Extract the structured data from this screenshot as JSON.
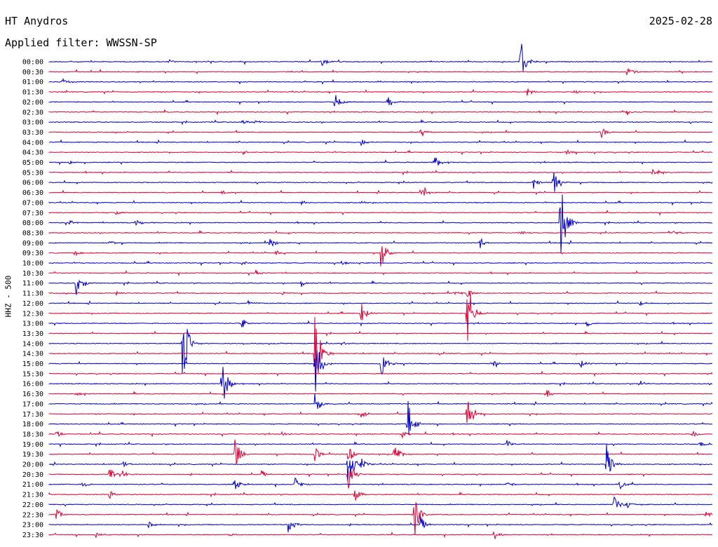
{
  "header": {
    "station": "HT Anydros",
    "date": "2025-02-28",
    "filter_label": "Applied filter: WWSSN-SP"
  },
  "chart_data": {
    "type": "line",
    "subtype": "helicorder",
    "channel_label": "HHZ - 500",
    "row_labels": [
      "00:00",
      "00:30",
      "01:00",
      "01:30",
      "02:00",
      "02:30",
      "03:00",
      "03:30",
      "04:00",
      "04:30",
      "05:00",
      "05:30",
      "06:00",
      "06:30",
      "07:00",
      "07:30",
      "08:00",
      "08:30",
      "09:00",
      "09:30",
      "10:00",
      "10:30",
      "11:00",
      "11:30",
      "12:00",
      "12:30",
      "13:00",
      "13:30",
      "14:00",
      "14:30",
      "15:00",
      "15:30",
      "16:00",
      "16:30",
      "17:00",
      "17:30",
      "18:00",
      "18:30",
      "19:00",
      "19:30",
      "20:00",
      "20:30",
      "21:00",
      "21:30",
      "22:00",
      "22:30",
      "23:00",
      "23:30"
    ],
    "trace_colors": [
      "#0000cc",
      "#dd0033"
    ],
    "grid": false,
    "events": [
      {
        "row": 0,
        "pos": 0.18,
        "amp": 4
      },
      {
        "row": 0,
        "pos": 0.41,
        "amp": 8
      },
      {
        "row": 0,
        "pos": 0.71,
        "amp": 45
      },
      {
        "row": 1,
        "pos": 0.87,
        "amp": 8
      },
      {
        "row": 1,
        "pos": 0.88,
        "amp": 4
      },
      {
        "row": 2,
        "pos": 0.02,
        "amp": 5
      },
      {
        "row": 3,
        "pos": 0.72,
        "amp": 8
      },
      {
        "row": 3,
        "pos": 0.79,
        "amp": 4
      },
      {
        "row": 4,
        "pos": 0.43,
        "amp": 16
      },
      {
        "row": 4,
        "pos": 0.51,
        "amp": 10
      },
      {
        "row": 5,
        "pos": 0.87,
        "amp": 6
      },
      {
        "row": 6,
        "pos": 0.29,
        "amp": 6
      },
      {
        "row": 6,
        "pos": 0.31,
        "amp": 4
      },
      {
        "row": 7,
        "pos": 0.56,
        "amp": 10
      },
      {
        "row": 7,
        "pos": 0.83,
        "amp": 14
      },
      {
        "row": 8,
        "pos": 0.47,
        "amp": 5
      },
      {
        "row": 9,
        "pos": 0.29,
        "amp": 4
      },
      {
        "row": 9,
        "pos": 0.78,
        "amp": 4
      },
      {
        "row": 10,
        "pos": 0.03,
        "amp": 4
      },
      {
        "row": 10,
        "pos": 0.58,
        "amp": 12
      },
      {
        "row": 11,
        "pos": 0.91,
        "amp": 8
      },
      {
        "row": 12,
        "pos": 0.73,
        "amp": 10
      },
      {
        "row": 12,
        "pos": 0.76,
        "amp": 22
      },
      {
        "row": 13,
        "pos": 0.56,
        "amp": 18
      },
      {
        "row": 13,
        "pos": 0.26,
        "amp": 4
      },
      {
        "row": 14,
        "pos": 0.38,
        "amp": 4
      },
      {
        "row": 14,
        "pos": 0.47,
        "amp": 3
      },
      {
        "row": 15,
        "pos": 0.1,
        "amp": 3
      },
      {
        "row": 16,
        "pos": 0.13,
        "amp": 6
      },
      {
        "row": 16,
        "pos": 0.77,
        "amp": 75
      },
      {
        "row": 16,
        "pos": 0.03,
        "amp": 5
      },
      {
        "row": 17,
        "pos": 0.71,
        "amp": 4
      },
      {
        "row": 17,
        "pos": 0.94,
        "amp": 4
      },
      {
        "row": 18,
        "pos": 0.09,
        "amp": 5
      },
      {
        "row": 18,
        "pos": 0.33,
        "amp": 14
      },
      {
        "row": 18,
        "pos": 0.65,
        "amp": 8
      },
      {
        "row": 19,
        "pos": 0.04,
        "amp": 4
      },
      {
        "row": 19,
        "pos": 0.5,
        "amp": 30
      },
      {
        "row": 19,
        "pos": 0.34,
        "amp": 4
      },
      {
        "row": 20,
        "pos": 0.29,
        "amp": 4
      },
      {
        "row": 20,
        "pos": 0.44,
        "amp": 4
      },
      {
        "row": 21,
        "pos": 0.31,
        "amp": 6
      },
      {
        "row": 22,
        "pos": 0.04,
        "amp": 22
      },
      {
        "row": 22,
        "pos": 0.05,
        "amp": 6
      },
      {
        "row": 22,
        "pos": 0.38,
        "amp": 6
      },
      {
        "row": 23,
        "pos": 0.1,
        "amp": 4
      },
      {
        "row": 23,
        "pos": 0.35,
        "amp": 4
      },
      {
        "row": 23,
        "pos": 0.61,
        "amp": 6
      },
      {
        "row": 23,
        "pos": 0.63,
        "amp": 8
      },
      {
        "row": 24,
        "pos": 0.3,
        "amp": 4
      },
      {
        "row": 24,
        "pos": 0.89,
        "amp": 4
      },
      {
        "row": 25,
        "pos": 0.47,
        "amp": 18
      },
      {
        "row": 25,
        "pos": 0.63,
        "amp": 65
      },
      {
        "row": 26,
        "pos": 0.29,
        "amp": 10
      },
      {
        "row": 26,
        "pos": 0.81,
        "amp": 6
      },
      {
        "row": 28,
        "pos": 0.2,
        "amp": 80
      },
      {
        "row": 28,
        "pos": 0.44,
        "amp": 6
      },
      {
        "row": 29,
        "pos": 0.4,
        "amp": 80
      },
      {
        "row": 30,
        "pos": 0.4,
        "amp": 60
      },
      {
        "row": 30,
        "pos": 0.5,
        "amp": 26
      },
      {
        "row": 30,
        "pos": 0.67,
        "amp": 6
      },
      {
        "row": 30,
        "pos": 0.8,
        "amp": 8
      },
      {
        "row": 32,
        "pos": 0.26,
        "amp": 45
      },
      {
        "row": 32,
        "pos": 0.89,
        "amp": 8
      },
      {
        "row": 33,
        "pos": 0.04,
        "amp": 5
      },
      {
        "row": 33,
        "pos": 0.75,
        "amp": 6
      },
      {
        "row": 34,
        "pos": 0.4,
        "amp": 20
      },
      {
        "row": 35,
        "pos": 0.47,
        "amp": 10
      },
      {
        "row": 35,
        "pos": 0.63,
        "amp": 42
      },
      {
        "row": 36,
        "pos": 0.54,
        "amp": 40
      },
      {
        "row": 37,
        "pos": 0.01,
        "amp": 6
      },
      {
        "row": 37,
        "pos": 0.35,
        "amp": 6
      },
      {
        "row": 37,
        "pos": 0.53,
        "amp": 10
      },
      {
        "row": 37,
        "pos": 0.97,
        "amp": 6
      },
      {
        "row": 38,
        "pos": 0.69,
        "amp": 6
      },
      {
        "row": 38,
        "pos": 0.98,
        "amp": 5
      },
      {
        "row": 39,
        "pos": 0.28,
        "amp": 30
      },
      {
        "row": 39,
        "pos": 0.4,
        "amp": 12
      },
      {
        "row": 39,
        "pos": 0.45,
        "amp": 20
      },
      {
        "row": 39,
        "pos": 0.52,
        "amp": 18
      },
      {
        "row": 40,
        "pos": 0.45,
        "amp": 40
      },
      {
        "row": 40,
        "pos": 0.47,
        "amp": 10
      },
      {
        "row": 40,
        "pos": 0.11,
        "amp": 6
      },
      {
        "row": 40,
        "pos": 0.84,
        "amp": 38
      },
      {
        "row": 41,
        "pos": 0.09,
        "amp": 12
      },
      {
        "row": 41,
        "pos": 0.11,
        "amp": 6
      },
      {
        "row": 41,
        "pos": 0.32,
        "amp": 6
      },
      {
        "row": 41,
        "pos": 0.45,
        "amp": 30
      },
      {
        "row": 42,
        "pos": 0.05,
        "amp": 6
      },
      {
        "row": 42,
        "pos": 0.28,
        "amp": 10
      },
      {
        "row": 42,
        "pos": 0.37,
        "amp": 12
      },
      {
        "row": 42,
        "pos": 0.69,
        "amp": 6
      },
      {
        "row": 42,
        "pos": 0.86,
        "amp": 10
      },
      {
        "row": 43,
        "pos": 0.09,
        "amp": 8
      },
      {
        "row": 43,
        "pos": 0.46,
        "amp": 12
      },
      {
        "row": 44,
        "pos": 0.85,
        "amp": 20
      },
      {
        "row": 44,
        "pos": 0.87,
        "amp": 8
      },
      {
        "row": 45,
        "pos": 0.01,
        "amp": 10
      },
      {
        "row": 45,
        "pos": 0.55,
        "amp": 40
      },
      {
        "row": 45,
        "pos": 0.99,
        "amp": 6
      },
      {
        "row": 46,
        "pos": 0.15,
        "amp": 5
      },
      {
        "row": 46,
        "pos": 0.36,
        "amp": 14
      },
      {
        "row": 46,
        "pos": 0.56,
        "amp": 12
      },
      {
        "row": 47,
        "pos": 0.07,
        "amp": 5
      },
      {
        "row": 47,
        "pos": 0.27,
        "amp": 4
      },
      {
        "row": 47,
        "pos": 0.67,
        "amp": 10
      }
    ]
  }
}
